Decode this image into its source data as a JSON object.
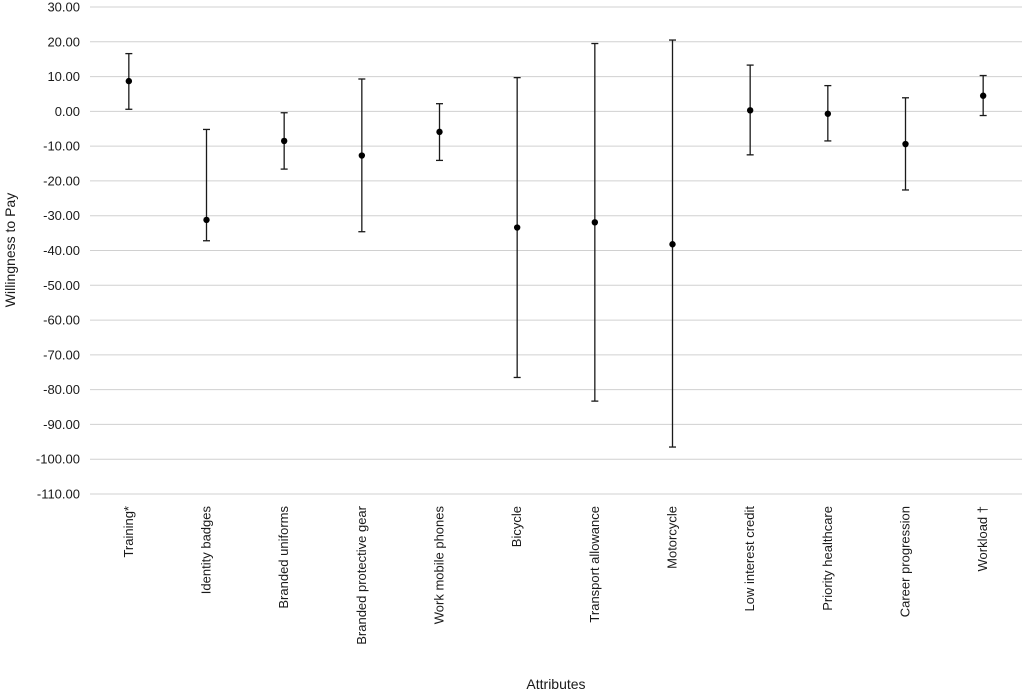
{
  "chart_data": {
    "type": "scatter",
    "title": "",
    "xlabel": "Attributes",
    "ylabel": "Willingness to Pay",
    "ylim": [
      -110,
      30
    ],
    "y_tick_step": 10,
    "y_tick_format": "2dp",
    "grid": true,
    "legend": "none",
    "categories": [
      "Training*",
      "Identity badges",
      "Branded uniforms",
      "Branded protective gear",
      "Work mobile phones",
      "Bicycle",
      "Transport allowance",
      "Motorcycle",
      "Low interest credit",
      "Priority healthcare",
      "Career progression",
      "Workload †"
    ],
    "series": [
      {
        "values": [
          8.7,
          -31.2,
          -8.5,
          -12.7,
          -5.9,
          -33.4,
          -31.9,
          -38.2,
          0.3,
          -0.7,
          -9.4,
          4.5
        ],
        "lower": [
          0.6,
          -37.2,
          -16.6,
          -34.6,
          -14.1,
          -76.5,
          -83.3,
          -96.5,
          -12.5,
          -8.5,
          -22.6,
          -1.2
        ],
        "upper": [
          16.6,
          -5.2,
          -0.4,
          9.3,
          2.2,
          9.7,
          19.5,
          20.5,
          13.3,
          7.4,
          3.9,
          10.3
        ]
      }
    ]
  }
}
